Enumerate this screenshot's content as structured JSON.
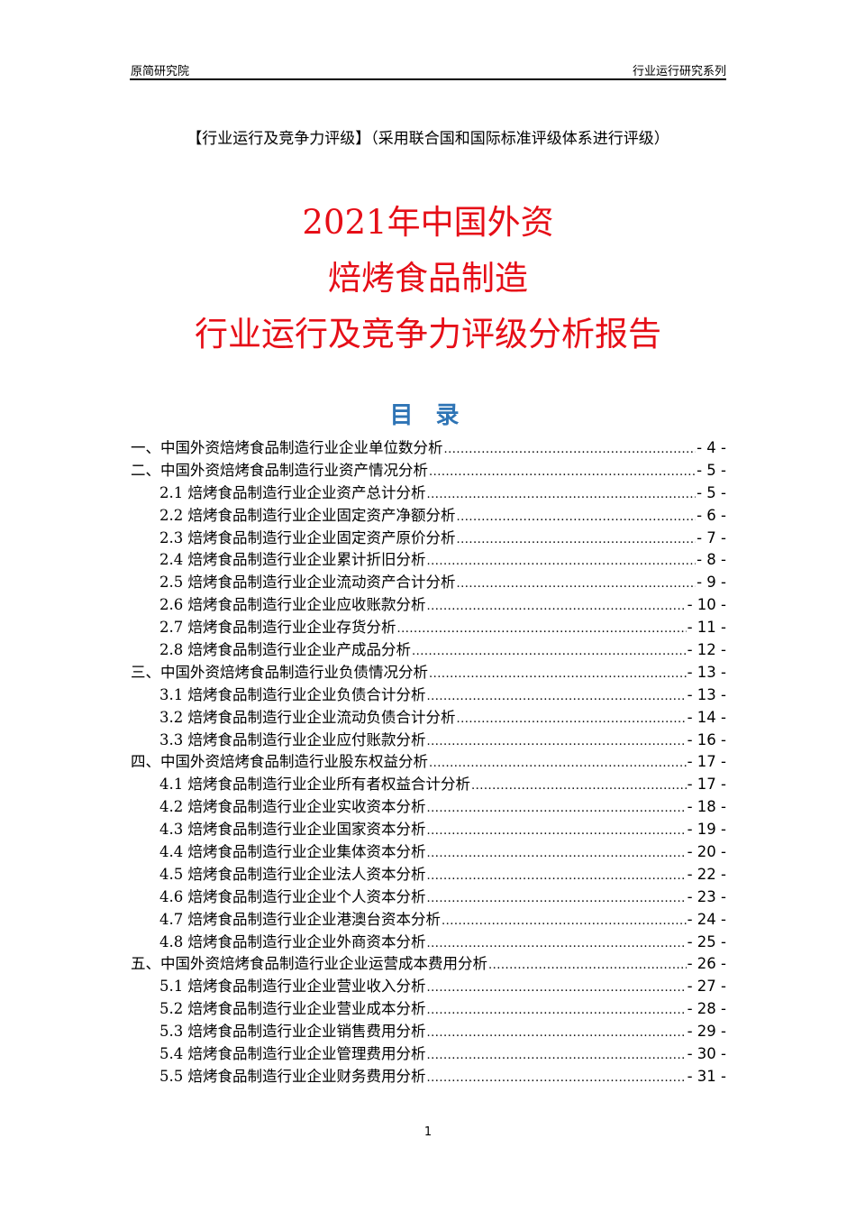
{
  "header": {
    "left": "原简研究院",
    "right": "行业运行研究系列"
  },
  "subtitle": "【行业运行及竞争力评级】（采用联合国和国际标准评级体系进行评级）",
  "title_lines": [
    "2021年中国外资",
    "焙烤食品制造",
    "行业运行及竞争力评级分析报告"
  ],
  "toc_heading": "目 录",
  "toc": [
    {
      "text": "一、中国外资焙烤食品制造行业企业单位数分析",
      "page": "- 4 -",
      "level": 1
    },
    {
      "text": "二、中国外资焙烤食品制造行业资产情况分析",
      "page": "- 5 -",
      "level": 1
    },
    {
      "text": "2.1 焙烤食品制造行业企业资产总计分析",
      "page": "- 5 -",
      "level": 2
    },
    {
      "text": "2.2 焙烤食品制造行业企业固定资产净额分析",
      "page": "- 6 -",
      "level": 2
    },
    {
      "text": "2.3 焙烤食品制造行业企业固定资产原价分析",
      "page": "- 7 -",
      "level": 2
    },
    {
      "text": "2.4 焙烤食品制造行业企业累计折旧分析",
      "page": "- 8 -",
      "level": 2
    },
    {
      "text": "2.5 焙烤食品制造行业企业流动资产合计分析",
      "page": "- 9 -",
      "level": 2
    },
    {
      "text": "2.6 焙烤食品制造行业企业应收账款分析",
      "page": "- 10 -",
      "level": 2
    },
    {
      "text": "2.7 焙烤食品制造行业企业存货分析",
      "page": "- 11 -",
      "level": 2
    },
    {
      "text": "2.8 焙烤食品制造行业企业产成品分析",
      "page": "- 12 -",
      "level": 2
    },
    {
      "text": "三、中国外资焙烤食品制造行业负债情况分析",
      "page": "- 13 -",
      "level": 1
    },
    {
      "text": "3.1 焙烤食品制造行业企业负债合计分析",
      "page": "- 13 -",
      "level": 2
    },
    {
      "text": "3.2 焙烤食品制造行业企业流动负债合计分析",
      "page": "- 14 -",
      "level": 2
    },
    {
      "text": "3.3 焙烤食品制造行业企业应付账款分析",
      "page": "- 16 -",
      "level": 2
    },
    {
      "text": "四、中国外资焙烤食品制造行业股东权益分析",
      "page": "- 17 -",
      "level": 1
    },
    {
      "text": "4.1 焙烤食品制造行业企业所有者权益合计分析",
      "page": "- 17 -",
      "level": 2
    },
    {
      "text": "4.2 焙烤食品制造行业企业实收资本分析",
      "page": "- 18 -",
      "level": 2
    },
    {
      "text": "4.3 焙烤食品制造行业企业国家资本分析",
      "page": "- 19 -",
      "level": 2
    },
    {
      "text": "4.4 焙烤食品制造行业企业集体资本分析",
      "page": "- 20 -",
      "level": 2
    },
    {
      "text": "4.5 焙烤食品制造行业企业法人资本分析",
      "page": "- 22 -",
      "level": 2
    },
    {
      "text": "4.6 焙烤食品制造行业企业个人资本分析",
      "page": "- 23 -",
      "level": 2
    },
    {
      "text": "4.7 焙烤食品制造行业企业港澳台资本分析",
      "page": "- 24 -",
      "level": 2
    },
    {
      "text": "4.8 焙烤食品制造行业企业外商资本分析",
      "page": "- 25 -",
      "level": 2
    },
    {
      "text": "五、中国外资焙烤食品制造行业企业运营成本费用分析",
      "page": "- 26 -",
      "level": 1
    },
    {
      "text": "5.1 焙烤食品制造行业企业营业收入分析",
      "page": "- 27 -",
      "level": 2
    },
    {
      "text": "5.2 焙烤食品制造行业企业营业成本分析",
      "page": "- 28 -",
      "level": 2
    },
    {
      "text": "5.3 焙烤食品制造行业企业销售费用分析",
      "page": "- 29 -",
      "level": 2
    },
    {
      "text": "5.4 焙烤食品制造行业企业管理费用分析",
      "page": "- 30 -",
      "level": 2
    },
    {
      "text": "5.5 焙烤食品制造行业企业财务费用分析",
      "page": "- 31 -",
      "level": 2
    }
  ],
  "page_number": "1",
  "colors": {
    "title": "#e60e17",
    "toc_heading": "#2e74b5"
  }
}
